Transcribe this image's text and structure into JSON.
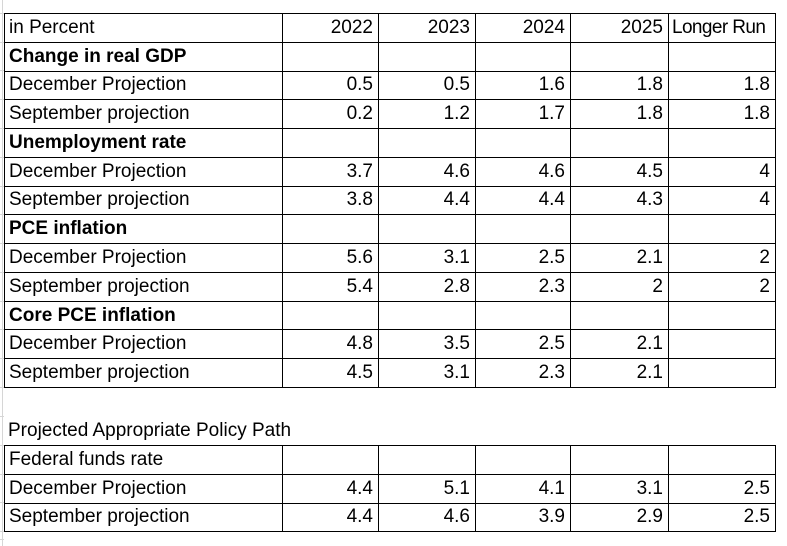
{
  "colors": {
    "background": "#ffffff",
    "table_border": "#000000",
    "gridline": "#d6d6d6",
    "text": "#000000"
  },
  "projections_table": {
    "unit_label": "in Percent",
    "year_headers": [
      "2022",
      "2023",
      "2024",
      "2025",
      "Longer Run"
    ],
    "rows": [
      {
        "label": "Change in real GDP",
        "type": "section",
        "values": [
          "",
          "",
          "",
          "",
          ""
        ]
      },
      {
        "label": "December Projection",
        "type": "data",
        "values": [
          "0.5",
          "0.5",
          "1.6",
          "1.8",
          "1.8"
        ]
      },
      {
        "label": "September projection",
        "type": "data",
        "values": [
          "0.2",
          "1.2",
          "1.7",
          "1.8",
          "1.8"
        ]
      },
      {
        "label": "Unemployment rate",
        "type": "section",
        "values": [
          "",
          "",
          "",
          "",
          ""
        ]
      },
      {
        "label": "December Projection",
        "type": "data",
        "values": [
          "3.7",
          "4.6",
          "4.6",
          "4.5",
          "4"
        ]
      },
      {
        "label": "September projection",
        "type": "data",
        "values": [
          "3.8",
          "4.4",
          "4.4",
          "4.3",
          "4"
        ]
      },
      {
        "label": "PCE inflation",
        "type": "section",
        "values": [
          "",
          "",
          "",
          "",
          ""
        ]
      },
      {
        "label": "December Projection",
        "type": "data",
        "values": [
          "5.6",
          "3.1",
          "2.5",
          "2.1",
          "2"
        ]
      },
      {
        "label": "September projection",
        "type": "data",
        "values": [
          "5.4",
          "2.8",
          "2.3",
          "2",
          "2"
        ]
      },
      {
        "label": "Core PCE inflation",
        "type": "section",
        "values": [
          "",
          "",
          "",
          "",
          ""
        ]
      },
      {
        "label": "December Projection",
        "type": "data",
        "values": [
          "4.8",
          "3.5",
          "2.5",
          "2.1",
          ""
        ]
      },
      {
        "label": "September projection",
        "type": "data",
        "values": [
          "4.5",
          "3.1",
          "2.3",
          "2.1",
          ""
        ]
      }
    ]
  },
  "policy_path": {
    "title": "Projected Appropriate Policy Path",
    "rows": [
      {
        "label": "Federal funds rate",
        "type": "data",
        "values": [
          "",
          "",
          "",
          "",
          ""
        ]
      },
      {
        "label": "December Projection",
        "type": "data",
        "values": [
          "4.4",
          "5.1",
          "4.1",
          "3.1",
          "2.5"
        ]
      },
      {
        "label": "September projection",
        "type": "data",
        "values": [
          "4.4",
          "4.6",
          "3.9",
          "2.9",
          "2.5"
        ]
      }
    ]
  }
}
